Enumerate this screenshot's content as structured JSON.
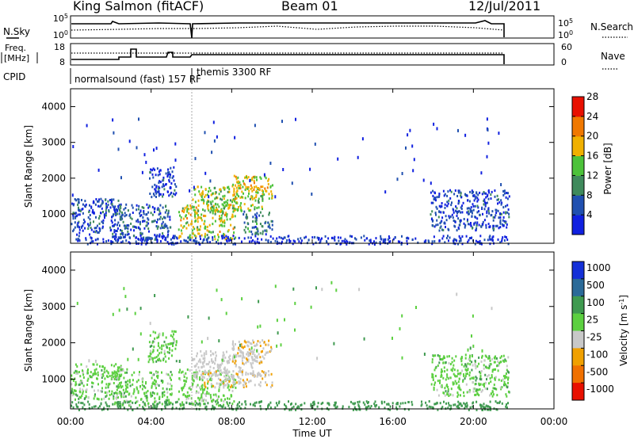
{
  "header": {
    "station": "King Salmon (fitACF)",
    "beam": "Beam 01",
    "date": "12/Jul/2011"
  },
  "noise_panel": {
    "left_label": "N.Sky",
    "right_label": "N.Search",
    "ticks": [
      "10^5",
      "10^0"
    ]
  },
  "freq_panel": {
    "left_label_line1": "Freq.",
    "left_label_line2": "[MHz]",
    "left_ticks": [
      "18",
      "8"
    ],
    "right_label": "Nave",
    "right_ticks": [
      "60",
      "0"
    ]
  },
  "cpid_panel": {
    "label": "CPID",
    "mode1": "normalsound (fast) 157 RF",
    "mode2": "themis 3300 RF"
  },
  "x_axis": {
    "label": "Time UT",
    "ticks": [
      "00:00",
      "04:00",
      "08:00",
      "12:00",
      "16:00",
      "20:00",
      "00:00"
    ]
  },
  "power_colorbar": {
    "label": "Power [dB]",
    "ticks": [
      "4",
      "8",
      "12",
      "16",
      "20",
      "24",
      "28"
    ],
    "colors": [
      "#1020e0",
      "#2050b0",
      "#3f8a5c",
      "#4cc23a",
      "#f0b000",
      "#f07800",
      "#e81000"
    ]
  },
  "velocity_colorbar": {
    "label": "Velocity [m s^-1]",
    "ticks": [
      "1000",
      "500",
      "100",
      "25",
      "-25",
      "-100",
      "-500",
      "-1000"
    ],
    "colors": [
      "#1430d8",
      "#2b6a98",
      "#3f9a50",
      "#5cd040",
      "#c8c8c8",
      "#f0a000",
      "#f07000",
      "#e81000"
    ]
  },
  "chart_data": [
    {
      "type": "heatmap",
      "title": "Power",
      "xlabel": "Time UT",
      "ylabel": "Slant Range [km]",
      "xlim": [
        "00:00",
        "24:00"
      ],
      "ylim": [
        180,
        4500
      ],
      "yticks": [
        1000,
        2000,
        3000,
        4000
      ],
      "colorbar": {
        "label": "Power [dB]",
        "range": [
          3,
          31
        ]
      },
      "data_extent": [
        "00:00",
        "21:45"
      ],
      "scatter_regions": [
        {
          "time_start": "00:00",
          "time_end": "02:30",
          "range_min": 450,
          "range_max": 1450,
          "power_db": 7
        },
        {
          "time_start": "02:00",
          "time_end": "05:00",
          "range_min": 300,
          "range_max": 1300,
          "power_db": 8
        },
        {
          "time_start": "03:50",
          "time_end": "05:15",
          "range_min": 1500,
          "range_max": 2350,
          "power_db": 6
        },
        {
          "time_start": "05:20",
          "time_end": "08:10",
          "range_min": 300,
          "range_max": 1300,
          "power_db": 18
        },
        {
          "time_start": "06:00",
          "time_end": "09:30",
          "range_min": 1100,
          "range_max": 1800,
          "power_db": 17
        },
        {
          "time_start": "08:00",
          "time_end": "10:00",
          "range_min": 1450,
          "range_max": 2100,
          "power_db": 19
        },
        {
          "time_start": "08:30",
          "time_end": "10:00",
          "range_min": 450,
          "range_max": 1100,
          "power_db": 10
        },
        {
          "time_start": "17:50",
          "time_end": "21:45",
          "range_min": 550,
          "range_max": 1700,
          "power_db": 7
        },
        {
          "time_start": "00:00",
          "time_end": "21:45",
          "range_min": 180,
          "range_max": 420,
          "power_db": 5
        }
      ]
    },
    {
      "type": "heatmap",
      "title": "Velocity",
      "xlabel": "Time UT",
      "ylabel": "Slant Range [km]",
      "xlim": [
        "00:00",
        "24:00"
      ],
      "ylim": [
        180,
        4500
      ],
      "yticks": [
        1000,
        2000,
        3000,
        4000
      ],
      "colorbar": {
        "label": "Velocity [m s^-1]",
        "range": [
          -1000,
          1000
        ]
      },
      "data_extent": [
        "00:00",
        "21:45"
      ],
      "scatter_regions": [
        {
          "time_start": "00:00",
          "time_end": "02:30",
          "range_min": 450,
          "range_max": 1450,
          "velocity": 0
        },
        {
          "time_start": "02:00",
          "time_end": "05:00",
          "range_min": 300,
          "range_max": 1300,
          "velocity": 0
        },
        {
          "time_start": "03:50",
          "time_end": "05:15",
          "range_min": 1500,
          "range_max": 2350,
          "velocity": 0
        },
        {
          "time_start": "05:20",
          "time_end": "08:10",
          "range_min": 300,
          "range_max": 1300,
          "velocity": -10
        },
        {
          "time_start": "06:00",
          "time_end": "09:30",
          "range_min": 1100,
          "range_max": 1800,
          "velocity": -60
        },
        {
          "time_start": "08:00",
          "time_end": "10:00",
          "range_min": 1450,
          "range_max": 2100,
          "velocity": -90
        },
        {
          "time_start": "06:30",
          "time_end": "10:00",
          "range_min": 800,
          "range_max": 1250,
          "velocity": -90
        },
        {
          "time_start": "17:50",
          "time_end": "21:45",
          "range_min": 550,
          "range_max": 1700,
          "velocity": 0
        },
        {
          "time_start": "00:00",
          "time_end": "21:45",
          "range_min": 180,
          "range_max": 420,
          "velocity": 60
        }
      ]
    }
  ]
}
